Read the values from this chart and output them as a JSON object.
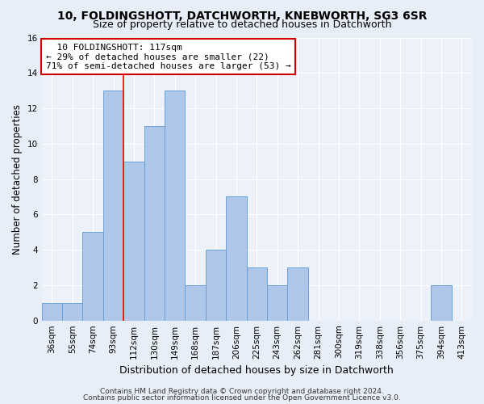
{
  "title1": "10, FOLDINGSHOTT, DATCHWORTH, KNEBWORTH, SG3 6SR",
  "title2": "Size of property relative to detached houses in Datchworth",
  "xlabel": "Distribution of detached houses by size in Datchworth",
  "ylabel": "Number of detached properties",
  "categories": [
    "36sqm",
    "55sqm",
    "74sqm",
    "93sqm",
    "112sqm",
    "130sqm",
    "149sqm",
    "168sqm",
    "187sqm",
    "206sqm",
    "225sqm",
    "243sqm",
    "262sqm",
    "281sqm",
    "300sqm",
    "319sqm",
    "338sqm",
    "356sqm",
    "375sqm",
    "394sqm",
    "413sqm"
  ],
  "values": [
    1,
    1,
    5,
    13,
    9,
    11,
    13,
    2,
    4,
    7,
    3,
    2,
    3,
    0,
    0,
    0,
    0,
    0,
    0,
    2,
    0
  ],
  "bar_color": "#aec6e8",
  "bar_edge_color": "#5b9bd5",
  "annotation_line": "  10 FOLDINGSHOTT: 117sqm",
  "annotation_line2": "← 29% of detached houses are smaller (22)",
  "annotation_line3": "71% of semi-detached houses are larger (53) →",
  "annotation_box_color": "#ffffff",
  "annotation_box_edge": "#cc0000",
  "ylim": [
    0,
    16
  ],
  "yticks": [
    0,
    2,
    4,
    6,
    8,
    10,
    12,
    14,
    16
  ],
  "footer1": "Contains HM Land Registry data © Crown copyright and database right 2024.",
  "footer2": "Contains public sector information licensed under the Open Government Licence v3.0.",
  "bg_color": "#e8eef8",
  "plot_bg_color": "#edf2fa",
  "grid_color": "#ffffff",
  "red_line_x": 3.5,
  "title1_fontsize": 10,
  "title2_fontsize": 9,
  "xlabel_fontsize": 9,
  "ylabel_fontsize": 8.5,
  "tick_fontsize": 7.5,
  "annotation_fontsize": 8,
  "footer_fontsize": 6.5
}
